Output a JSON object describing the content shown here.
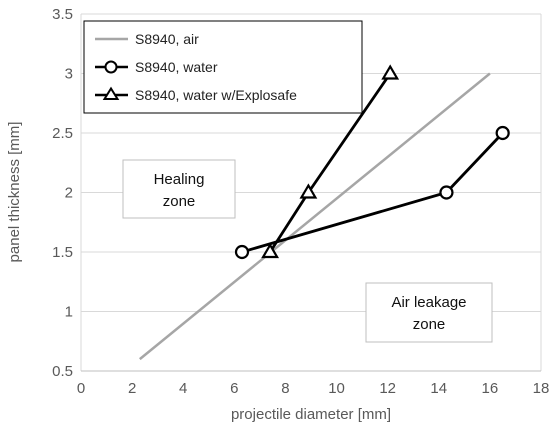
{
  "chart_data": {
    "type": "line",
    "xlabel": "projectile diameter [mm]",
    "ylabel": "panel thickness [mm]",
    "xlim": [
      0,
      18
    ],
    "ylim": [
      0.5,
      3.5
    ],
    "xticks": [
      0,
      2,
      4,
      6,
      8,
      10,
      12,
      14,
      16,
      18
    ],
    "yticks": [
      0.5,
      1,
      1.5,
      2,
      2.5,
      3,
      3.5
    ],
    "ytick_labels": [
      "0.5",
      "1",
      "1.5",
      "2",
      "2.5",
      "3",
      "3.5"
    ],
    "grid": "y-major",
    "legend_position": "top-left",
    "series": [
      {
        "name": "S8940, air",
        "color": "#a6a6a6",
        "marker": "none",
        "x": [
          2.3,
          16.0
        ],
        "y": [
          0.6,
          3.0
        ]
      },
      {
        "name": "S8940, water",
        "color": "#000000",
        "marker": "circle",
        "x": [
          6.3,
          14.3,
          16.5
        ],
        "y": [
          1.5,
          2.0,
          2.5
        ]
      },
      {
        "name": "S8940, water w/Explosafe",
        "color": "#000000",
        "marker": "triangle",
        "x": [
          7.4,
          8.9,
          12.1
        ],
        "y": [
          1.5,
          2.0,
          3.0
        ]
      }
    ],
    "annotations": [
      {
        "lines": [
          "Healing",
          "zone"
        ]
      },
      {
        "lines": [
          "Air leakage",
          "zone"
        ]
      }
    ]
  }
}
